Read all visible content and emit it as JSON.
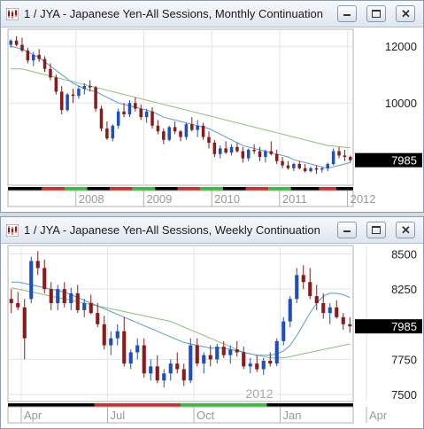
{
  "windows": [
    {
      "title": "1 / JYA - Japanese Yen-All Sessions, Monthly Continuation",
      "controls": [
        "minimize-button",
        "maximize-button",
        "close-button"
      ]
    },
    {
      "title": "1 / JYA - Japanese Yen-All Sessions, Weekly Continuation",
      "controls": [
        "minimize-button",
        "maximize-button",
        "close-button"
      ]
    }
  ],
  "colors": {
    "up": "#1f4fbf",
    "down": "#8b1a1a",
    "ma_fast": "#5a9bd5",
    "ma_slow": "#8cbf7a",
    "price_box": "#000000"
  },
  "chart_data": [
    {
      "type": "candlestick",
      "interval": "monthly",
      "y_ticks": [
        12000,
        10000
      ],
      "y_tick_labels": [
        "12000",
        "10000"
      ],
      "ylim": [
        7100,
        12600
      ],
      "x_tick_labels": [
        "2008",
        "2009",
        "2010",
        "2011",
        "2012"
      ],
      "x_tick_positions": [
        12,
        24,
        36,
        48,
        60
      ],
      "last_price": 7985,
      "last_price_label": "7985",
      "candles": [
        [
          12050,
          12250,
          11950,
          12200
        ],
        [
          12200,
          12350,
          12000,
          12050
        ],
        [
          12050,
          12300,
          11800,
          11850
        ],
        [
          11850,
          11950,
          11400,
          11500
        ],
        [
          11500,
          11800,
          11300,
          11700
        ],
        [
          11700,
          11900,
          11450,
          11550
        ],
        [
          11550,
          11650,
          11100,
          11200
        ],
        [
          11200,
          11400,
          10800,
          10900
        ],
        [
          10900,
          11000,
          10300,
          10400
        ],
        [
          10400,
          10600,
          9600,
          9750
        ],
        [
          9750,
          10350,
          9700,
          10300
        ],
        [
          10300,
          10500,
          10000,
          10250
        ],
        [
          10250,
          10600,
          10150,
          10500
        ],
        [
          10500,
          10700,
          10300,
          10600
        ],
        [
          10600,
          10800,
          10400,
          10550
        ],
        [
          10550,
          10600,
          9700,
          9800
        ],
        [
          9800,
          9900,
          9000,
          9100
        ],
        [
          9100,
          9350,
          8700,
          8750
        ],
        [
          8750,
          9250,
          8650,
          9200
        ],
        [
          9200,
          9800,
          9100,
          9700
        ],
        [
          9700,
          10000,
          9500,
          9600
        ],
        [
          9600,
          10100,
          9500,
          10000
        ],
        [
          10000,
          10200,
          9700,
          9800
        ],
        [
          9800,
          9950,
          9400,
          9500
        ],
        [
          9500,
          9800,
          9300,
          9700
        ],
        [
          9700,
          9850,
          9100,
          9200
        ],
        [
          9200,
          9400,
          8900,
          9000
        ],
        [
          9000,
          9100,
          8550,
          8700
        ],
        [
          8700,
          9200,
          8650,
          9150
        ],
        [
          9150,
          9350,
          8900,
          9000
        ],
        [
          9000,
          9050,
          8650,
          8800
        ],
        [
          8800,
          9300,
          8700,
          9250
        ],
        [
          9250,
          9500,
          9000,
          9050
        ],
        [
          9050,
          9400,
          8800,
          9200
        ],
        [
          9200,
          9300,
          8700,
          8800
        ],
        [
          8800,
          9000,
          8400,
          8600
        ],
        [
          8600,
          8700,
          8100,
          8200
        ],
        [
          8200,
          8500,
          8050,
          8400
        ],
        [
          8400,
          8650,
          8200,
          8250
        ],
        [
          8250,
          8550,
          8150,
          8450
        ],
        [
          8450,
          8600,
          8250,
          8300
        ],
        [
          8300,
          8450,
          7900,
          8050
        ],
        [
          8050,
          8400,
          7950,
          8350
        ],
        [
          8350,
          8550,
          8200,
          8300
        ],
        [
          8300,
          8450,
          7950,
          8100
        ],
        [
          8100,
          8350,
          7900,
          8300
        ],
        [
          8300,
          8650,
          8150,
          8200
        ],
        [
          8200,
          8350,
          7850,
          7950
        ],
        [
          7950,
          8100,
          7700,
          7800
        ],
        [
          7800,
          7950,
          7650,
          7700
        ],
        [
          7700,
          7900,
          7600,
          7850
        ],
        [
          7850,
          7950,
          7650,
          7700
        ],
        [
          7700,
          7850,
          7550,
          7600
        ],
        [
          7600,
          7750,
          7550,
          7700
        ],
        [
          7700,
          7800,
          7500,
          7650
        ],
        [
          7650,
          7750,
          7550,
          7700
        ],
        [
          7700,
          7900,
          7600,
          7850
        ],
        [
          7850,
          8400,
          7800,
          8300
        ],
        [
          8300,
          8450,
          8050,
          8150
        ],
        [
          8150,
          8350,
          7950,
          8100
        ],
        [
          8100,
          8150,
          7900,
          7985
        ]
      ],
      "ma_fast": [
        12000,
        11950,
        11900,
        11800,
        11700,
        11600,
        11450,
        11300,
        11150,
        11000,
        10850,
        10700,
        10600,
        10500,
        10450,
        10400,
        10300,
        10200,
        10100,
        10000,
        9950,
        9900,
        9850,
        9800,
        9750,
        9700,
        9600,
        9500,
        9450,
        9400,
        9350,
        9300,
        9250,
        9200,
        9150,
        9100,
        9000,
        8900,
        8800,
        8700,
        8600,
        8500,
        8450,
        8400,
        8350,
        8300,
        8250,
        8200,
        8150,
        8100,
        8000,
        7950,
        7900,
        7850,
        7800,
        7750,
        7700,
        7750,
        7800,
        7850,
        7900
      ],
      "ma_slow": [
        11200,
        11200,
        11200,
        11150,
        11100,
        11050,
        11000,
        10950,
        10900,
        10850,
        10800,
        10750,
        10700,
        10650,
        10600,
        10550,
        10500,
        10450,
        10400,
        10350,
        10300,
        10250,
        10200,
        10150,
        10100,
        10050,
        10000,
        9950,
        9900,
        9850,
        9800,
        9750,
        9700,
        9650,
        9600,
        9550,
        9500,
        9450,
        9400,
        9350,
        9300,
        9250,
        9200,
        9150,
        9100,
        9050,
        9000,
        8950,
        8900,
        8850,
        8800,
        8750,
        8700,
        8650,
        8600,
        8550,
        8500,
        8480,
        8460,
        8440,
        8420
      ],
      "session_bar": [
        {
          "from": 0,
          "to": 6,
          "color": "#000000"
        },
        {
          "from": 6,
          "to": 10,
          "color": "#d42a2a"
        },
        {
          "from": 10,
          "to": 14,
          "color": "#2ec42e"
        },
        {
          "from": 14,
          "to": 18,
          "color": "#000000"
        },
        {
          "from": 18,
          "to": 22,
          "color": "#d42a2a"
        },
        {
          "from": 22,
          "to": 26,
          "color": "#2ec42e"
        },
        {
          "from": 26,
          "to": 30,
          "color": "#000000"
        },
        {
          "from": 30,
          "to": 34,
          "color": "#d42a2a"
        },
        {
          "from": 34,
          "to": 38,
          "color": "#2ec42e"
        },
        {
          "from": 38,
          "to": 42,
          "color": "#000000"
        },
        {
          "from": 42,
          "to": 46,
          "color": "#d42a2a"
        },
        {
          "from": 46,
          "to": 50,
          "color": "#2ec42e"
        },
        {
          "from": 50,
          "to": 55,
          "color": "#000000"
        },
        {
          "from": 55,
          "to": 58,
          "color": "#d42a2a"
        },
        {
          "from": 58,
          "to": 62,
          "color": "#000000"
        }
      ]
    },
    {
      "type": "candlestick",
      "interval": "weekly",
      "y_ticks": [
        8500,
        8250,
        7750,
        7500
      ],
      "y_tick_labels": [
        "8500",
        "8250",
        "7750",
        "7500"
      ],
      "ylim": [
        7450,
        8560
      ],
      "x_tick_labels": [
        "Apr",
        "Jul",
        "Oct",
        "Jan",
        "Apr"
      ],
      "x_tick_positions": [
        2,
        15,
        28,
        41,
        54
      ],
      "year_label": "2012",
      "last_price": 7985,
      "last_price_label": "7985",
      "candles": [
        [
          8180,
          8250,
          8080,
          8150
        ],
        [
          8150,
          8230,
          8100,
          8120
        ],
        [
          8120,
          8180,
          7750,
          7900
        ],
        [
          8180,
          8480,
          8150,
          8450
        ],
        [
          8450,
          8520,
          8350,
          8400
        ],
        [
          8400,
          8460,
          8220,
          8250
        ],
        [
          8250,
          8300,
          8100,
          8150
        ],
        [
          8150,
          8280,
          8100,
          8250
        ],
        [
          8250,
          8300,
          8120,
          8150
        ],
        [
          8150,
          8260,
          8100,
          8220
        ],
        [
          8220,
          8280,
          8080,
          8100
        ],
        [
          8100,
          8180,
          8050,
          8150
        ],
        [
          8150,
          8210,
          8070,
          8080
        ],
        [
          8080,
          8150,
          7980,
          8000
        ],
        [
          8000,
          8060,
          7820,
          7850
        ],
        [
          7850,
          7950,
          7780,
          7900
        ],
        [
          7900,
          8000,
          7850,
          7950
        ],
        [
          7950,
          8050,
          7700,
          7720
        ],
        [
          7720,
          7820,
          7680,
          7800
        ],
        [
          7800,
          7900,
          7750,
          7850
        ],
        [
          7850,
          7900,
          7620,
          7650
        ],
        [
          7650,
          7750,
          7600,
          7700
        ],
        [
          7700,
          7780,
          7580,
          7600
        ],
        [
          7600,
          7680,
          7550,
          7650
        ],
        [
          7650,
          7750,
          7600,
          7720
        ],
        [
          7720,
          7800,
          7650,
          7680
        ],
        [
          7680,
          7720,
          7560,
          7600
        ],
        [
          7600,
          7900,
          7580,
          7850
        ],
        [
          7850,
          7900,
          7700,
          7720
        ],
        [
          7720,
          7800,
          7650,
          7780
        ],
        [
          7780,
          7850,
          7700,
          7750
        ],
        [
          7750,
          7860,
          7720,
          7840
        ],
        [
          7840,
          7880,
          7760,
          7780
        ],
        [
          7780,
          7850,
          7720,
          7820
        ],
        [
          7820,
          7880,
          7770,
          7800
        ],
        [
          7800,
          7840,
          7680,
          7700
        ],
        [
          7700,
          7760,
          7650,
          7720
        ],
        [
          7720,
          7780,
          7660,
          7680
        ],
        [
          7680,
          7760,
          7640,
          7740
        ],
        [
          7740,
          7800,
          7700,
          7720
        ],
        [
          7720,
          7900,
          7700,
          7880
        ],
        [
          7880,
          8050,
          7850,
          8020
        ],
        [
          8020,
          8200,
          7980,
          8180
        ],
        [
          8180,
          8400,
          8150,
          8350
        ],
        [
          8350,
          8420,
          8250,
          8300
        ],
        [
          8300,
          8400,
          8180,
          8200
        ],
        [
          8200,
          8280,
          8100,
          8150
        ],
        [
          8150,
          8220,
          8040,
          8080
        ],
        [
          8080,
          8150,
          8000,
          8120
        ],
        [
          8120,
          8170,
          8040,
          8050
        ],
        [
          8050,
          8080,
          7960,
          8000
        ],
        [
          8000,
          8050,
          7940,
          7985
        ]
      ],
      "ma_fast": [
        8300,
        8300,
        8290,
        8280,
        8270,
        8260,
        8250,
        8240,
        8230,
        8210,
        8190,
        8170,
        8150,
        8130,
        8110,
        8090,
        8070,
        8050,
        8030,
        8010,
        7990,
        7970,
        7950,
        7930,
        7910,
        7890,
        7870,
        7860,
        7850,
        7840,
        7830,
        7830,
        7830,
        7820,
        7810,
        7800,
        7790,
        7780,
        7780,
        7780,
        7790,
        7810,
        7850,
        7920,
        8000,
        8080,
        8150,
        8200,
        8220,
        8220,
        8210,
        8190
      ],
      "ma_slow": [
        8260,
        8250,
        8240,
        8230,
        8220,
        8210,
        8200,
        8190,
        8180,
        8170,
        8160,
        8150,
        8140,
        8130,
        8120,
        8110,
        8100,
        8090,
        8080,
        8070,
        8060,
        8050,
        8040,
        8030,
        8020,
        8000,
        7980,
        7960,
        7940,
        7920,
        7900,
        7880,
        7860,
        7840,
        7820,
        7800,
        7790,
        7780,
        7770,
        7760,
        7760,
        7760,
        7770,
        7780,
        7790,
        7800,
        7810,
        7820,
        7830,
        7840,
        7850,
        7860
      ],
      "session_bar": [
        {
          "from": 0,
          "to": 13,
          "color": "#000000"
        },
        {
          "from": 13,
          "to": 26,
          "color": "#d42a2a"
        },
        {
          "from": 26,
          "to": 39,
          "color": "#2ec42e"
        },
        {
          "from": 39,
          "to": 54,
          "color": "#000000"
        }
      ]
    }
  ]
}
